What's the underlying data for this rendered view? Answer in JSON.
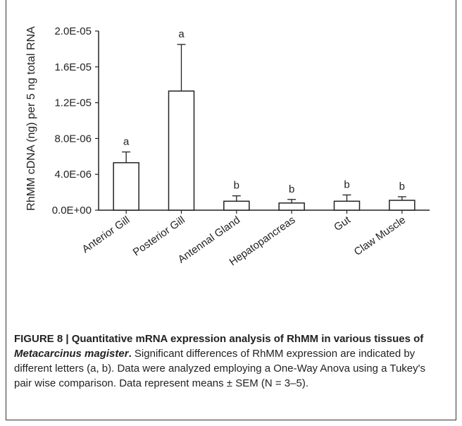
{
  "chart_data": {
    "type": "bar",
    "ylabel": "RhMM cDNA (ng) per 5 ng total RNA",
    "xlabel": "",
    "ylim": [
      0,
      2e-05
    ],
    "ytick_labels": [
      "0.0E+00",
      "4.0E-06",
      "8.0E-06",
      "1.2E-05",
      "1.6E-05",
      "2.0E-05"
    ],
    "yticks": [
      0,
      4e-06,
      8e-06,
      1.2e-05,
      1.6e-05,
      2e-05
    ],
    "categories": [
      "Anterior Gill",
      "Posterior Gill",
      "Antennal Gland",
      "Hepatopancreas",
      "Gut",
      "Claw Muscle"
    ],
    "values": [
      5.3e-06,
      1.33e-05,
      1e-06,
      8e-07,
      1e-06,
      1.1e-06
    ],
    "errors": [
      1.2e-06,
      5.2e-06,
      6e-07,
      4e-07,
      7e-07,
      4e-07
    ],
    "letters": [
      "a",
      "a",
      "b",
      "b",
      "b",
      "b"
    ],
    "bar_fill": "#ffffff",
    "bar_stroke": "#222222"
  },
  "caption": {
    "label": "FIGURE 8 | Quantitative mRNA expression analysis of RhMM in various tissues of ",
    "species": "Metacarcinus magister",
    "label_end": ".",
    "text": " Significant differences of RhMM expression are indicated by different letters (a, b). Data were analyzed employing a One-Way Anova using a Tukey's pair wise comparison. Data represent means ± SEM (N = 3–5)."
  }
}
